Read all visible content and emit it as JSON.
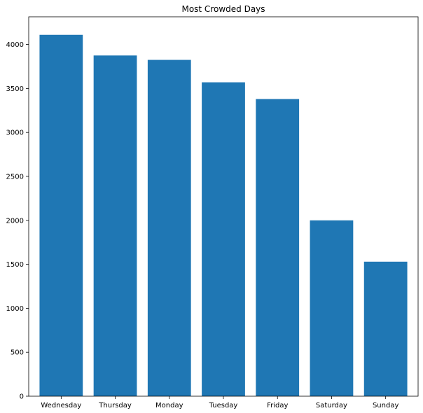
{
  "chart_data": {
    "type": "bar",
    "title": "Most Crowded Days",
    "xlabel": "",
    "ylabel": "",
    "categories": [
      "Wednesday",
      "Thursday",
      "Monday",
      "Tuesday",
      "Friday",
      "Saturday",
      "Sunday"
    ],
    "values": [
      4110,
      3875,
      3825,
      3570,
      3380,
      2000,
      1530
    ],
    "ylim": [
      0,
      4315
    ],
    "yticks": [
      0,
      500,
      1000,
      1500,
      2000,
      2500,
      3000,
      3500,
      4000
    ],
    "grid": false,
    "bar_color": "#1f77b4"
  }
}
